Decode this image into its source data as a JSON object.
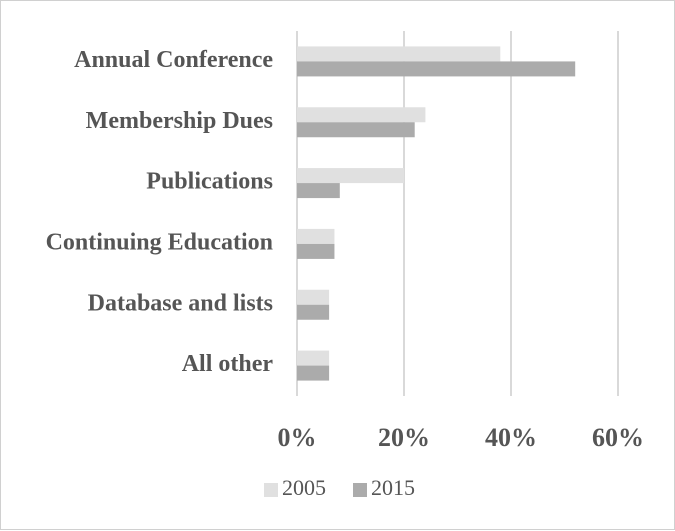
{
  "chart_data": {
    "type": "bar",
    "orientation": "horizontal",
    "categories": [
      "Annual Conference",
      "Membership Dues",
      "Publications",
      "Continuing Education",
      "Database and lists",
      "All other"
    ],
    "series": [
      {
        "name": "2005",
        "values": [
          38,
          24,
          20,
          7,
          6,
          6
        ],
        "color": "#e0e0e0"
      },
      {
        "name": "2015",
        "values": [
          52,
          22,
          8,
          7,
          6,
          6
        ],
        "color": "#ababab"
      }
    ],
    "xlim": [
      0,
      60
    ],
    "xticks": [
      0,
      20,
      40,
      60
    ],
    "xtick_labels": [
      "0%",
      "20%",
      "40%",
      "60%"
    ],
    "grid": true,
    "legend_position": "bottom"
  }
}
